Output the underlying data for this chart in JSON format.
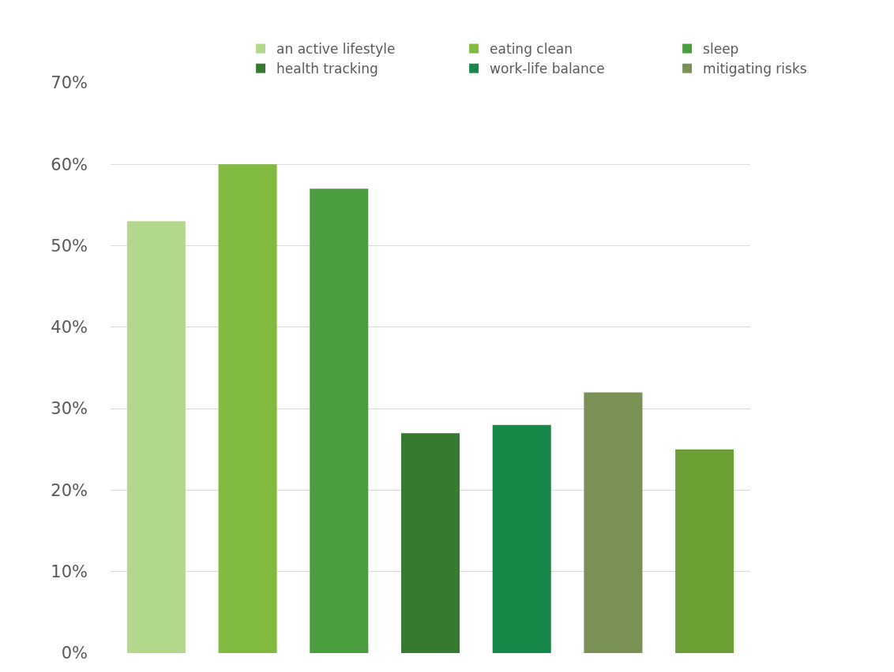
{
  "chart_data": {
    "type": "bar",
    "categories": [
      null,
      null,
      null,
      null,
      null,
      null,
      null
    ],
    "series": [
      {
        "name": "an active lifestyle",
        "color": "#b3d78b",
        "values": [
          53,
          null,
          null,
          null,
          null,
          null,
          null
        ]
      },
      {
        "name": "eating clean",
        "color": "#82bb41",
        "values": [
          null,
          60,
          null,
          null,
          null,
          null,
          null
        ]
      },
      {
        "name": "sleep",
        "color": "#4a9e3d",
        "values": [
          null,
          null,
          57,
          null,
          null,
          null,
          null
        ]
      },
      {
        "name": "health tracking",
        "color": "#357a30",
        "values": [
          null,
          null,
          null,
          27,
          null,
          null,
          null
        ]
      },
      {
        "name": "work-life balance",
        "color": "#17884a",
        "values": [
          null,
          null,
          null,
          null,
          28,
          null,
          null
        ]
      },
      {
        "name": "mitigating risks",
        "color": "#7a9155",
        "values": [
          null,
          null,
          null,
          null,
          null,
          32,
          null
        ]
      },
      {
        "color": "#6b9e34",
        "values": [
          null,
          null,
          null,
          null,
          null,
          null,
          25
        ]
      }
    ],
    "ylim": [
      0,
      70
    ],
    "yticks": [
      {
        "value": 0,
        "label": "0%"
      },
      {
        "value": 10,
        "label": "10%"
      },
      {
        "value": 20,
        "label": "20%"
      },
      {
        "value": 30,
        "label": "30%"
      },
      {
        "value": 40,
        "label": "40%"
      },
      {
        "value": 50,
        "label": "50%"
      },
      {
        "value": 60,
        "label": "60%"
      },
      {
        "value": 70,
        "label": "70%"
      }
    ],
    "grid": "y",
    "legend": "top",
    "tick_labels": "y"
  }
}
